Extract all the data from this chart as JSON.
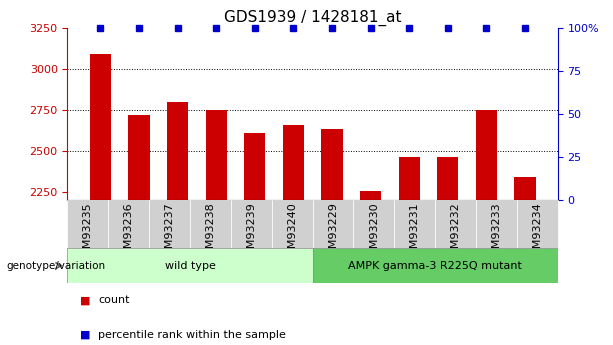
{
  "title": "GDS1939 / 1428181_at",
  "categories": [
    "GSM93235",
    "GSM93236",
    "GSM93237",
    "GSM93238",
    "GSM93239",
    "GSM93240",
    "GSM93229",
    "GSM93230",
    "GSM93231",
    "GSM93232",
    "GSM93233",
    "GSM93234"
  ],
  "bar_values": [
    3090,
    2720,
    2800,
    2750,
    2610,
    2660,
    2630,
    2255,
    2460,
    2465,
    2750,
    2340
  ],
  "percentile_values": [
    100,
    100,
    100,
    100,
    100,
    100,
    100,
    100,
    100,
    100,
    100,
    100
  ],
  "bar_color": "#cc0000",
  "percentile_color": "#0000cc",
  "ylim_left": [
    2200,
    3250
  ],
  "ymin": 2200,
  "ylim_right": [
    0,
    100
  ],
  "yticks_left": [
    2250,
    2500,
    2750,
    3000,
    3250
  ],
  "yticks_right": [
    0,
    25,
    50,
    75,
    100
  ],
  "ytick_labels_right": [
    "0",
    "25",
    "50",
    "75",
    "100%"
  ],
  "grid_lines": [
    3000,
    2750,
    2500
  ],
  "wild_type_label": "wild type",
  "mutant_label": "AMPK gamma-3 R225Q mutant",
  "genotype_label": "genotype/variation",
  "legend_count": "count",
  "legend_percentile": "percentile rank within the sample",
  "bg_color_plot": "#ffffff",
  "bg_color_xtick": "#d0d0d0",
  "bg_color_wildtype": "#ccffcc",
  "bg_color_mutant": "#66cc66",
  "title_fontsize": 11,
  "axis_fontsize": 8,
  "bar_width": 0.55,
  "n_wild_type": 6,
  "n_mutant": 6
}
